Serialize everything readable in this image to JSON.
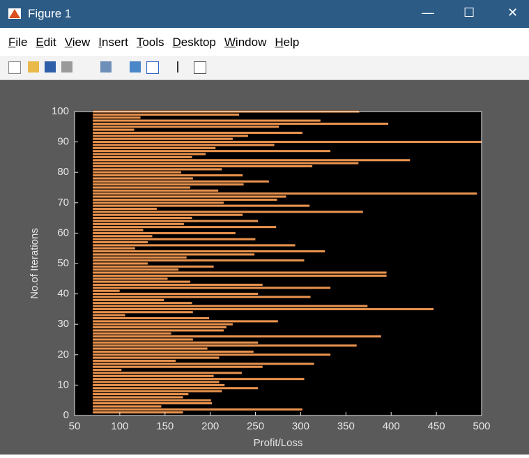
{
  "window": {
    "title": "Figure 1",
    "menu": [
      "File",
      "Edit",
      "View",
      "Insert",
      "Tools",
      "Desktop",
      "Window",
      "Help"
    ]
  },
  "chart_data": {
    "type": "barh",
    "xlabel": "Profit/Loss",
    "ylabel": "No.of Iterations",
    "y": [
      1,
      2,
      3,
      4,
      5,
      6,
      7,
      8,
      9,
      10,
      11,
      12,
      13,
      14,
      15,
      16,
      17,
      18,
      19,
      20,
      21,
      22,
      23,
      24,
      25,
      26,
      27,
      28,
      29,
      30,
      31,
      32,
      33,
      34,
      35,
      36,
      37,
      38,
      39,
      40,
      41,
      42,
      43,
      44,
      45,
      46,
      47,
      48,
      49,
      50,
      51,
      52,
      53,
      54,
      55,
      56,
      57,
      58,
      59,
      60,
      61,
      62,
      63,
      64,
      65,
      66,
      67,
      68,
      69,
      70,
      71,
      72,
      73,
      74,
      75,
      76,
      77,
      78,
      79,
      80,
      81,
      82,
      83,
      84,
      85,
      86,
      87,
      88,
      89,
      90,
      91,
      92,
      93,
      94,
      95,
      96,
      97,
      98,
      99,
      100
    ],
    "values": [
      170,
      302,
      146,
      202,
      201,
      170,
      176,
      213,
      253,
      216,
      210,
      304,
      204,
      235,
      102,
      258,
      315,
      162,
      210,
      333,
      248,
      197,
      362,
      253,
      181,
      389,
      157,
      215,
      218,
      225,
      275,
      199,
      106,
      181,
      447,
      374,
      180,
      149,
      311,
      253,
      100,
      333,
      258,
      178,
      153,
      395,
      395,
      165,
      204,
      131,
      304,
      174,
      249,
      327,
      117,
      294,
      131,
      250,
      136,
      228,
      126,
      273,
      171,
      253,
      180,
      236,
      369,
      141,
      310,
      215,
      274,
      284,
      495,
      209,
      178,
      237,
      265,
      181,
      236,
      168,
      213,
      313,
      364,
      421,
      180,
      195,
      333,
      206,
      271,
      500,
      225,
      242,
      302,
      116,
      276,
      397,
      322,
      123,
      232,
      365
    ],
    "base_value": 70,
    "color": "#e8924e",
    "xlim": [
      50,
      500
    ],
    "xticks": [
      50,
      100,
      150,
      200,
      250,
      300,
      350,
      400,
      450,
      500
    ],
    "ylim": [
      0,
      100
    ],
    "yticks": [
      0,
      10,
      20,
      30,
      40,
      50,
      60,
      70,
      80,
      90,
      100
    ]
  }
}
